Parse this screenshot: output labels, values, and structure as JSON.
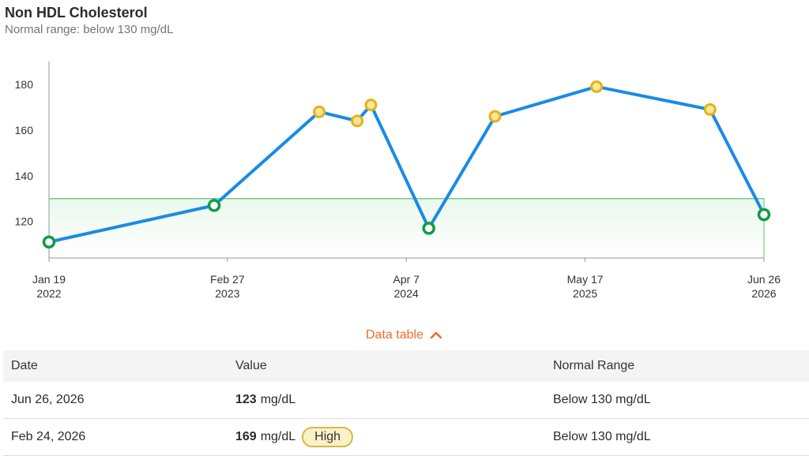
{
  "header": {
    "title": "Non HDL Cholesterol",
    "subtitle": "Normal range: below 130 mg/dL"
  },
  "chart_data": {
    "type": "line",
    "title": "Non HDL Cholesterol",
    "subtitle": "Normal range: below 130 mg/dL",
    "xlabel": "",
    "ylabel": "",
    "x_ticks": [
      {
        "date": "2022-01-19",
        "label": [
          "Jan 19",
          "2022"
        ]
      },
      {
        "date": "2023-02-27",
        "label": [
          "Feb 27",
          "2023"
        ]
      },
      {
        "date": "2024-04-07",
        "label": [
          "Apr 7",
          "2024"
        ]
      },
      {
        "date": "2025-05-17",
        "label": [
          "May 17",
          "2025"
        ]
      },
      {
        "date": "2026-06-26",
        "label": [
          "Jun 26",
          "2026"
        ]
      }
    ],
    "xlim": [
      "2022-01-19",
      "2026-06-26"
    ],
    "y_ticks": [
      120,
      140,
      160,
      180
    ],
    "ylim": [
      104,
      190
    ],
    "normal_range": {
      "max": 130
    },
    "colors": {
      "line": "#1a8ae6",
      "normal_marker": "#0f9d43",
      "high_marker": "#e3b21b",
      "range_stroke": "#5cc26f",
      "range_fill": "#eaf8ec"
    },
    "series": [
      {
        "points": [
          {
            "x": "2022-01-19",
            "y": 111,
            "status": "normal"
          },
          {
            "x": "2023-01-28",
            "y": 127,
            "status": "normal"
          },
          {
            "x": "2023-09-23",
            "y": 168,
            "status": "high"
          },
          {
            "x": "2023-12-18",
            "y": 164,
            "status": "high"
          },
          {
            "x": "2024-01-18",
            "y": 171,
            "status": "high"
          },
          {
            "x": "2024-05-28",
            "y": 117,
            "status": "normal"
          },
          {
            "x": "2024-10-25",
            "y": 166,
            "status": "high"
          },
          {
            "x": "2025-06-12",
            "y": 179,
            "status": "high"
          },
          {
            "x": "2026-02-24",
            "y": 169,
            "status": "high"
          },
          {
            "x": "2026-06-26",
            "y": 123,
            "status": "normal"
          }
        ]
      }
    ]
  },
  "data_table": {
    "toggle_label": "Data table",
    "headers": [
      "Date",
      "Value",
      "Normal Range"
    ],
    "rows": [
      {
        "date": "Jun 26, 2026",
        "value": "123",
        "unit": "mg/dL",
        "range": "Below 130 mg/dL",
        "badge": ""
      },
      {
        "date": "Feb 24, 2026",
        "value": "169",
        "unit": "mg/dL",
        "range": "Below 130 mg/dL",
        "badge": "High"
      }
    ]
  }
}
